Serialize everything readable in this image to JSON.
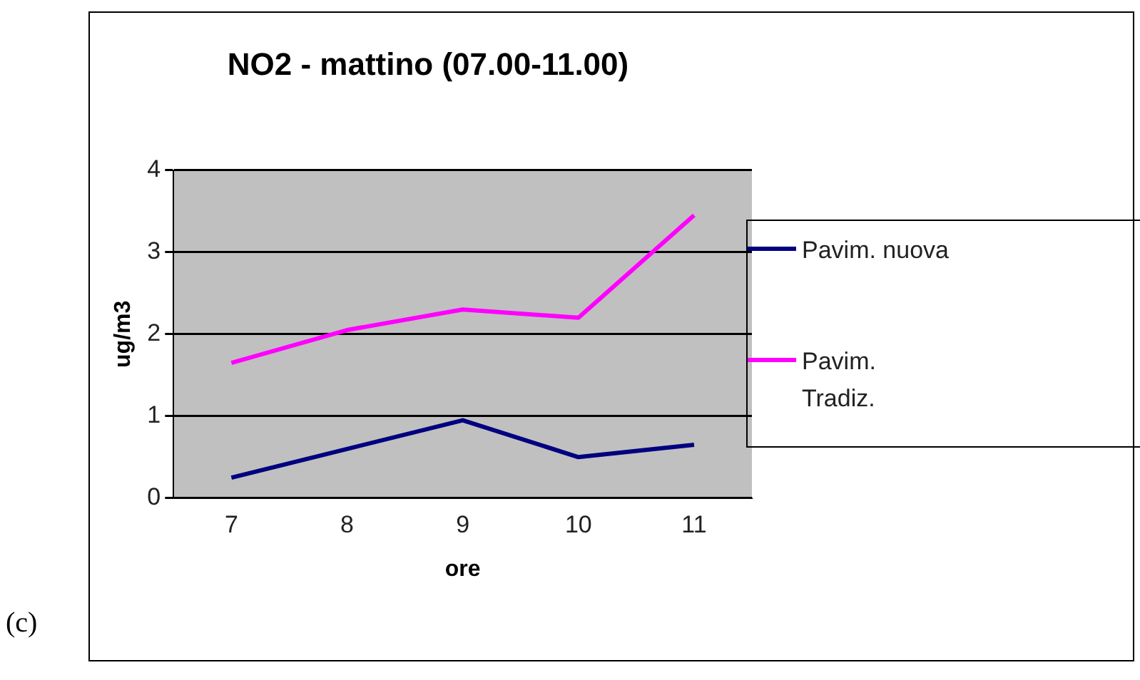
{
  "chart_data": {
    "type": "line",
    "title": "NO2 - mattino (07.00-11.00)",
    "xlabel": "ore",
    "ylabel": "ug/m3",
    "categories": [
      "7",
      "8",
      "9",
      "10",
      "11"
    ],
    "series": [
      {
        "name": "Pavim. nuova",
        "color": "#000080",
        "values": [
          0.25,
          0.6,
          0.95,
          0.5,
          0.65
        ]
      },
      {
        "name": "Pavim. Tradiz.",
        "color": "#ff00ff",
        "values": [
          1.65,
          2.05,
          2.3,
          2.2,
          3.45
        ]
      }
    ],
    "ylim": [
      0,
      4
    ],
    "yticks": [
      0,
      1,
      2,
      3,
      4
    ],
    "grid": "y",
    "legend": "right",
    "marker": "none",
    "line_style": "solid",
    "annotations": [
      "(c)"
    ]
  }
}
